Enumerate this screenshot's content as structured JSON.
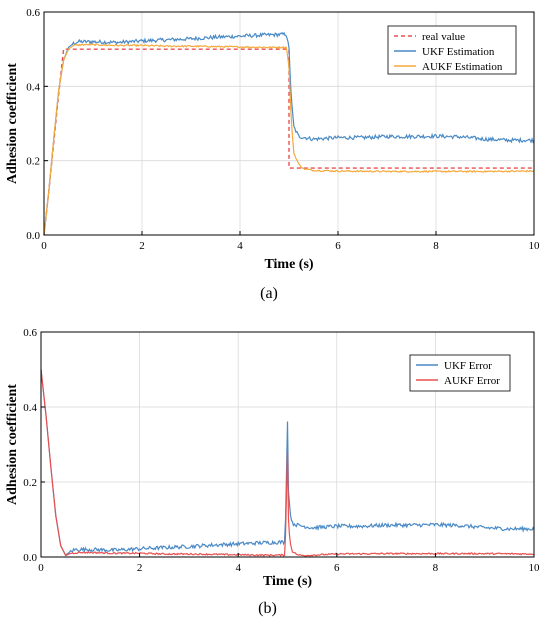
{
  "chart_data": [
    {
      "type": "line",
      "panel_label": "(a)",
      "xlabel": "Time (s)",
      "ylabel": "Adhesion coefficient",
      "xlim": [
        0,
        10
      ],
      "ylim": [
        0,
        0.6
      ],
      "xticks": [
        0,
        2,
        4,
        6,
        8,
        10
      ],
      "yticks": [
        0.0,
        0.2,
        0.4,
        0.6
      ],
      "xtick_labels": [
        "0",
        "2",
        "4",
        "6",
        "8",
        "10"
      ],
      "ytick_labels": [
        "0.0",
        "0.2",
        "0.4",
        "0.6"
      ],
      "grid": true,
      "legend_position": "top-right",
      "series": [
        {
          "name": "real value",
          "color": "#e8504f",
          "dash": true,
          "x": [
            0,
            0.1,
            0.2,
            0.3,
            0.4,
            5.0,
            5.0,
            10
          ],
          "y": [
            0,
            0.12,
            0.25,
            0.38,
            0.5,
            0.5,
            0.18,
            0.18
          ]
        },
        {
          "name": "UKF Estimation",
          "color": "#4a8ac6",
          "noise": 0.005,
          "x": [
            0,
            0.1,
            0.2,
            0.3,
            0.4,
            0.5,
            0.6,
            0.7,
            1.0,
            1.5,
            2.0,
            2.5,
            3.0,
            3.5,
            4.0,
            4.5,
            4.95,
            5.0,
            5.05,
            5.1,
            5.2,
            5.5,
            6.0,
            6.5,
            7.0,
            7.5,
            8.0,
            8.5,
            9.0,
            9.5,
            10.0
          ],
          "y": [
            0,
            0.12,
            0.26,
            0.39,
            0.47,
            0.505,
            0.515,
            0.52,
            0.52,
            0.518,
            0.522,
            0.525,
            0.528,
            0.532,
            0.535,
            0.538,
            0.54,
            0.5,
            0.36,
            0.29,
            0.265,
            0.258,
            0.262,
            0.262,
            0.265,
            0.265,
            0.266,
            0.264,
            0.258,
            0.255,
            0.255
          ]
        },
        {
          "name": "AUKF Estimation",
          "color": "#f5a93a",
          "noise": 0.002,
          "x": [
            0,
            0.1,
            0.2,
            0.3,
            0.4,
            0.5,
            0.6,
            0.8,
            1.0,
            1.5,
            2.0,
            2.5,
            3.0,
            3.5,
            4.0,
            4.5,
            4.95,
            5.0,
            5.05,
            5.1,
            5.2,
            5.3,
            5.5,
            6.0,
            7.0,
            8.0,
            9.0,
            10.0
          ],
          "y": [
            0,
            0.12,
            0.26,
            0.39,
            0.47,
            0.5,
            0.51,
            0.512,
            0.512,
            0.51,
            0.51,
            0.508,
            0.508,
            0.507,
            0.506,
            0.505,
            0.505,
            0.45,
            0.3,
            0.22,
            0.19,
            0.178,
            0.174,
            0.172,
            0.171,
            0.171,
            0.171,
            0.172
          ]
        }
      ]
    },
    {
      "type": "line",
      "panel_label": "(b)",
      "xlabel": "Time (s)",
      "ylabel": "Adhesion coefficient",
      "xlim": [
        0,
        10
      ],
      "ylim": [
        0,
        0.6
      ],
      "xticks": [
        0,
        2,
        4,
        6,
        8,
        10
      ],
      "yticks": [
        0.0,
        0.2,
        0.4,
        0.6
      ],
      "xtick_labels": [
        "0",
        "2",
        "4",
        "6",
        "8",
        "10"
      ],
      "ytick_labels": [
        "0.0",
        "0.2",
        "0.4",
        "0.6"
      ],
      "grid": true,
      "legend_position": "top-right",
      "series": [
        {
          "name": "UKF Error",
          "color": "#4a8ac6",
          "noise": 0.005,
          "x": [
            0,
            0.1,
            0.2,
            0.3,
            0.4,
            0.5,
            0.6,
            0.7,
            1.0,
            1.5,
            2.0,
            2.5,
            3.0,
            3.5,
            4.0,
            4.5,
            4.95,
            5.0,
            5.01,
            5.05,
            5.1,
            5.2,
            5.5,
            6.0,
            6.5,
            7.0,
            7.5,
            8.0,
            8.5,
            9.0,
            9.5,
            10.0
          ],
          "y": [
            0.5,
            0.38,
            0.24,
            0.11,
            0.03,
            0.005,
            0.015,
            0.02,
            0.02,
            0.018,
            0.022,
            0.025,
            0.028,
            0.032,
            0.035,
            0.038,
            0.04,
            0.36,
            0.2,
            0.12,
            0.09,
            0.085,
            0.078,
            0.082,
            0.082,
            0.085,
            0.085,
            0.086,
            0.084,
            0.078,
            0.075,
            0.075
          ]
        },
        {
          "name": "AUKF Error",
          "color": "#e8504f",
          "noise": 0.002,
          "x": [
            0,
            0.1,
            0.2,
            0.3,
            0.4,
            0.5,
            0.6,
            0.8,
            1.0,
            1.5,
            2.0,
            2.5,
            3.0,
            3.5,
            4.0,
            4.5,
            4.95,
            5.0,
            5.01,
            5.05,
            5.1,
            5.2,
            5.3,
            5.5,
            6.0,
            7.0,
            8.0,
            9.0,
            10.0
          ],
          "y": [
            0.5,
            0.38,
            0.24,
            0.11,
            0.03,
            0.004,
            0.01,
            0.012,
            0.012,
            0.01,
            0.01,
            0.008,
            0.008,
            0.007,
            0.006,
            0.005,
            0.005,
            0.28,
            0.12,
            0.04,
            0.015,
            0.006,
            0.004,
            0.005,
            0.008,
            0.009,
            0.009,
            0.009,
            0.008
          ]
        }
      ]
    }
  ]
}
